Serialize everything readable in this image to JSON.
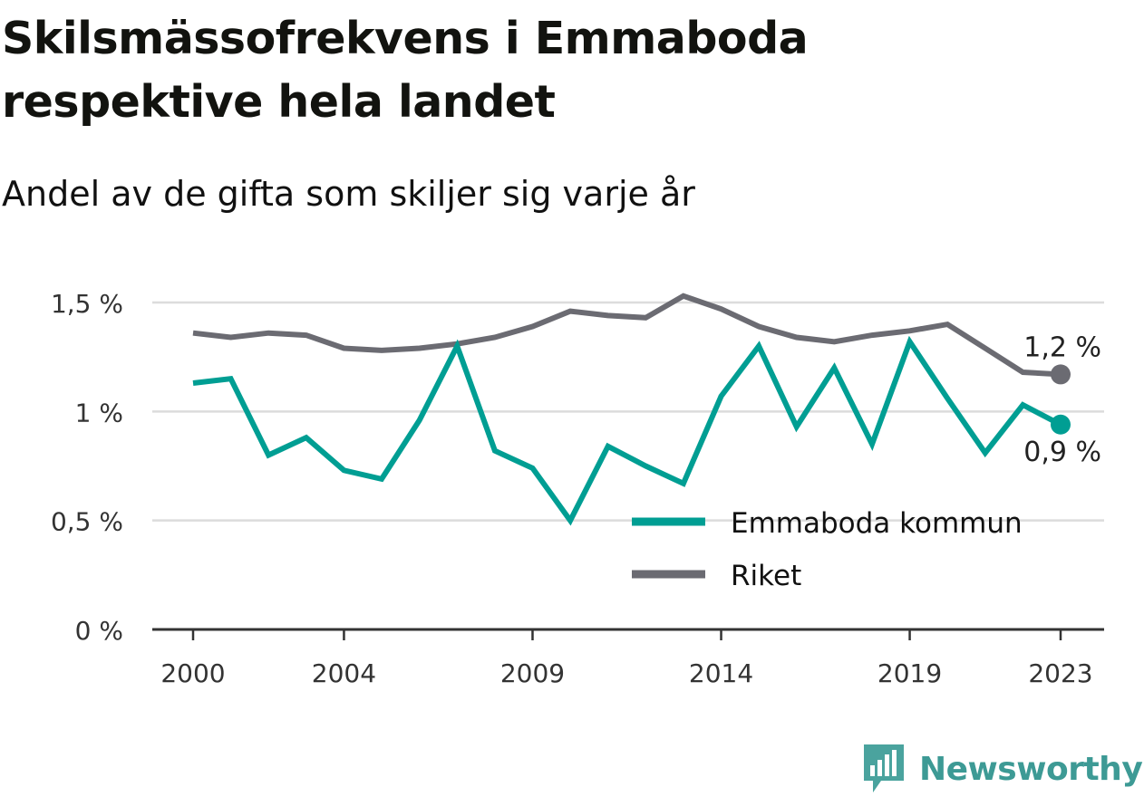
{
  "title": {
    "line1": "Skilsmässofrekvens i Emmaboda",
    "line2": "respektive hela landet"
  },
  "subtitle": "Andel av de gifta som skiljer sig varje år",
  "brand": "Newsworthy",
  "chart_data": {
    "type": "line",
    "x": [
      2000,
      2001,
      2002,
      2003,
      2004,
      2005,
      2006,
      2007,
      2008,
      2009,
      2010,
      2011,
      2012,
      2013,
      2014,
      2015,
      2016,
      2017,
      2018,
      2019,
      2020,
      2021,
      2022,
      2023
    ],
    "xticks": [
      2000,
      2004,
      2009,
      2014,
      2019,
      2023
    ],
    "ylim": [
      0,
      1.5
    ],
    "yticks": [
      {
        "value": 0,
        "label": "0 %"
      },
      {
        "value": 0.5,
        "label": "0,5 %"
      },
      {
        "value": 1,
        "label": "1 %"
      },
      {
        "value": 1.5,
        "label": "1,5 %"
      }
    ],
    "grid": true,
    "legend_position": "bottom-right",
    "series": [
      {
        "name": "Emmaboda kommun",
        "color": "#009e93",
        "values": [
          1.13,
          1.15,
          0.8,
          0.88,
          0.73,
          0.69,
          0.96,
          1.3,
          0.82,
          0.74,
          0.5,
          0.84,
          0.75,
          0.67,
          1.07,
          1.3,
          0.93,
          1.2,
          0.85,
          1.32,
          1.06,
          0.81,
          1.03,
          0.94
        ],
        "end_label": "0,9 %"
      },
      {
        "name": "Riket",
        "color": "#6b6b72",
        "values": [
          1.36,
          1.34,
          1.36,
          1.35,
          1.29,
          1.28,
          1.29,
          1.31,
          1.34,
          1.39,
          1.46,
          1.44,
          1.43,
          1.53,
          1.47,
          1.39,
          1.34,
          1.32,
          1.35,
          1.37,
          1.4,
          1.29,
          1.18,
          1.17
        ],
        "end_label": "1,2 %"
      }
    ]
  }
}
